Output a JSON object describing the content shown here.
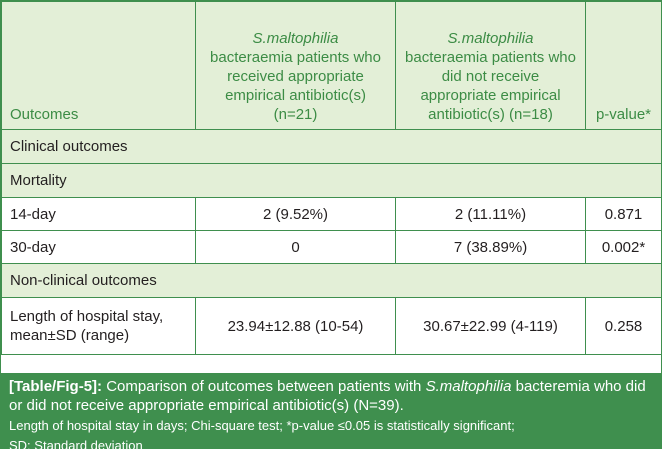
{
  "table": {
    "headers": {
      "outcomes": "Outcomes",
      "col2_italic": "S.maltophilia",
      "col2_rest": "bacteraemia patients who received appropriate empirical antibiotic(s) (n=21)",
      "col3_italic": "S.maltophilia",
      "col3_rest": "bacteraemia patients who did not receive appropriate empirical antibiotic(s) (n=18)",
      "pvalue": "p-value*"
    },
    "sections": {
      "clinical": "Clinical outcomes",
      "mortality": "Mortality",
      "nonclinical": "Non-clinical outcomes"
    },
    "rows": [
      {
        "label": "14-day",
        "received": "2 (9.52%)",
        "not_received": "2 (11.11%)",
        "p": "0.871"
      },
      {
        "label": "30-day",
        "received": "0",
        "not_received": "7 (38.89%)",
        "p": "0.002*"
      },
      {
        "label": "Length of hospital stay, mean±SD (range)",
        "received": "23.94±12.88 (10-54)",
        "not_received": "30.67±22.99 (4-119)",
        "p": "0.258"
      }
    ]
  },
  "caption": {
    "fig_label": "[Table/Fig-5]:",
    "text_before": "Comparison of outcomes between patients with",
    "italic": "S.maltophilia",
    "text_after": "bacteremia who did or did not receive appropriate empirical antibiotic(s) (N=39).",
    "note1": "Length of hospital stay in days; Chi-square test; *p-value ≤0.05 is statistically significant;",
    "note2": "SD: Standard deviation"
  },
  "colors": {
    "border": "#3f8f4e",
    "header_bg": "#e3efd7",
    "header_text": "#3c8c45",
    "caption_bg": "#3f8f4e"
  }
}
